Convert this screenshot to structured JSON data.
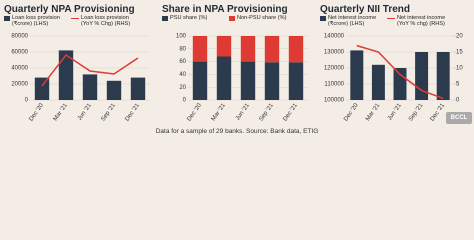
{
  "chart_data": [
    {
      "type": "combo",
      "title": "Quarterly NPA Provisioning",
      "categories": [
        "Dec '20",
        "Mar '21",
        "Jun '21",
        "Sep '21",
        "Dec '21"
      ],
      "series": [
        {
          "name": "Loan loss provision (₹crore) (LHS)",
          "color": "#2b3a4c",
          "mark": "bar",
          "values": [
            28000,
            62000,
            32000,
            24000,
            28000
          ]
        },
        {
          "name": "Loan loss provision (YoY % Chg) (RHS)",
          "color": "#e03a35",
          "mark": "line",
          "axis": "y2",
          "values": [
            -34,
            111,
            36,
            22,
            97
          ]
        }
      ],
      "ylim": [
        0,
        80000
      ],
      "yticks": [
        0,
        20000,
        40000,
        60000,
        80000
      ],
      "y2lim": [
        -100,
        200
      ]
    },
    {
      "type": "stacked",
      "title": "Share in NPA Provisioning",
      "categories": [
        "Dec '20",
        "Mar '21",
        "Jun '21",
        "Sep '21",
        "Dec '21"
      ],
      "series": [
        {
          "name": "PSU share (%)",
          "color": "#2b3a4c",
          "values": [
            60,
            68,
            60,
            59,
            59
          ]
        },
        {
          "name": "Non-PSU share (%)",
          "color": "#e03a35",
          "values": [
            40,
            32,
            40,
            41,
            41
          ]
        }
      ],
      "ylim": [
        0,
        100
      ],
      "yticks": [
        0,
        20,
        40,
        60,
        80,
        100
      ]
    },
    {
      "type": "combo",
      "title": "Quarterly NII Trend",
      "categories": [
        "Dec '20",
        "Mar '21",
        "Jun '21",
        "Sep '21",
        "Dec '21"
      ],
      "series": [
        {
          "name": "Net interest income (₹crore) (LHS)",
          "color": "#2b3a4c",
          "mark": "bar",
          "values": [
            131000,
            122000,
            120000,
            130000,
            130000
          ]
        },
        {
          "name": "Net interest income (YoY % chg) (RHS)",
          "color": "#e03a35",
          "mark": "line",
          "axis": "y2",
          "values": [
            17,
            15,
            8,
            3,
            0.5
          ]
        }
      ],
      "ylim": [
        100000,
        140000
      ],
      "yticks": [
        100000,
        110000,
        120000,
        130000,
        140000
      ],
      "y2lim": [
        0,
        20
      ],
      "y2ticks": [
        0,
        5,
        10,
        15,
        20
      ]
    }
  ],
  "footnote": "Data for a sample of 29 banks. Source: Bank data, ETIG"
}
